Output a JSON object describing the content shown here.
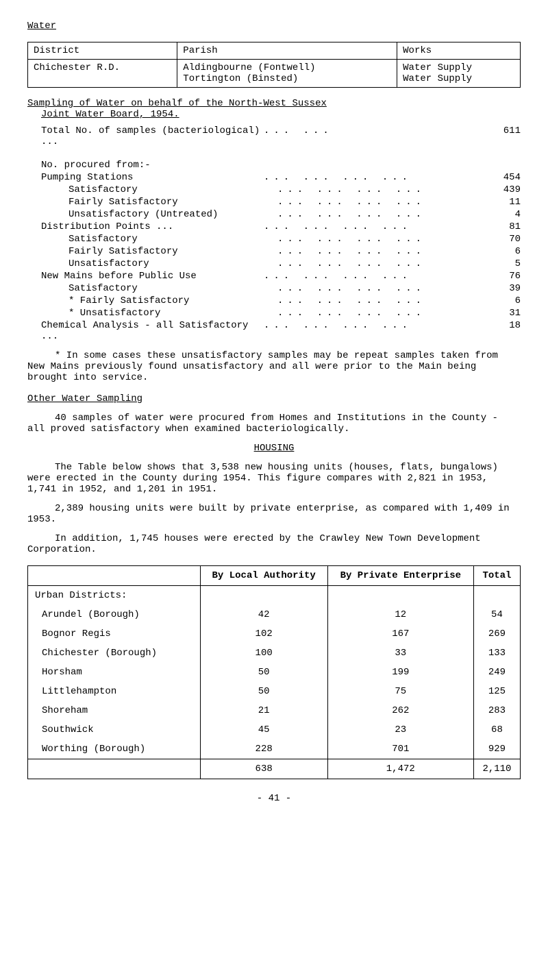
{
  "header": {
    "title": "Water"
  },
  "table1": {
    "headers": [
      "District",
      "Parish",
      "Works"
    ],
    "row": {
      "district": "Chichester R.D.",
      "parish": "Aldingbourne (Fontwell)\nTortington (Binsted)",
      "works": "Water Supply\nWater Supply"
    }
  },
  "sampling": {
    "title1": "Sampling of Water on behalf of the North-West Sussex",
    "title2": "Joint Water Board, 1954.",
    "total_label": "Total No. of samples (bacteriological) ...",
    "total_value": "611",
    "procured_label": "No. procured from:-",
    "rows": [
      {
        "indent": 1,
        "label": "Pumping Stations",
        "value": "454"
      },
      {
        "indent": 2,
        "label": "Satisfactory",
        "value": "439"
      },
      {
        "indent": 2,
        "label": "Fairly Satisfactory",
        "value": "11"
      },
      {
        "indent": 2,
        "label": "Unsatisfactory (Untreated)",
        "value": "4"
      },
      {
        "indent": 1,
        "label": "Distribution Points ...",
        "value": "81"
      },
      {
        "indent": 2,
        "label": "Satisfactory",
        "value": "70"
      },
      {
        "indent": 2,
        "label": "Fairly Satisfactory",
        "value": "6"
      },
      {
        "indent": 2,
        "label": "Unsatisfactory",
        "value": "5"
      },
      {
        "indent": 1,
        "label": "New Mains before Public Use",
        "value": "76"
      },
      {
        "indent": 2,
        "label": "Satisfactory",
        "value": "39"
      },
      {
        "indent": 2,
        "label": "* Fairly Satisfactory",
        "value": "6"
      },
      {
        "indent": 2,
        "label": "* Unsatisfactory",
        "value": "31"
      },
      {
        "indent": 1,
        "label": "Chemical Analysis - all Satisfactory ...",
        "value": "18"
      }
    ],
    "note": "* In some cases these unsatisfactory samples may be repeat samples taken from New Mains previously found unsatisfactory and all were prior to the Main being brought into service."
  },
  "other": {
    "title": "Other Water Sampling",
    "text": "40 samples of water were procured from Homes and Institutions in the County - all proved satisfactory when examined bacteriologically."
  },
  "housing": {
    "heading": "HOUSING",
    "para1": "The Table below shows that 3,538 new housing units (houses, flats, bungalows) were erected in the County during 1954. This figure compares with 2,821 in 1953, 1,741 in 1952, and 1,201 in 1951.",
    "para2": "2,389 housing units were built by private enterprise, as compared with 1,409 in 1953.",
    "para3": "In addition, 1,745 houses were erected by the Crawley New Town Development Corporation.",
    "table": {
      "headers": [
        "",
        "By Local Authority",
        "By Private Enterprise",
        "Total"
      ],
      "section": "Urban Districts:",
      "rows": [
        {
          "name": "Arundel (Borough)",
          "local": "42",
          "private": "12",
          "total": "54"
        },
        {
          "name": "Bognor Regis",
          "local": "102",
          "private": "167",
          "total": "269"
        },
        {
          "name": "Chichester (Borough)",
          "local": "100",
          "private": "33",
          "total": "133"
        },
        {
          "name": "Horsham",
          "local": "50",
          "private": "199",
          "total": "249"
        },
        {
          "name": "Littlehampton",
          "local": "50",
          "private": "75",
          "total": "125"
        },
        {
          "name": "Shoreham",
          "local": "21",
          "private": "262",
          "total": "283"
        },
        {
          "name": "Southwick",
          "local": "45",
          "private": "23",
          "total": "68"
        },
        {
          "name": "Worthing (Borough)",
          "local": "228",
          "private": "701",
          "total": "929"
        }
      ],
      "totals": {
        "local": "638",
        "private": "1,472",
        "total": "2,110"
      }
    }
  },
  "pagenum": "- 41 -"
}
